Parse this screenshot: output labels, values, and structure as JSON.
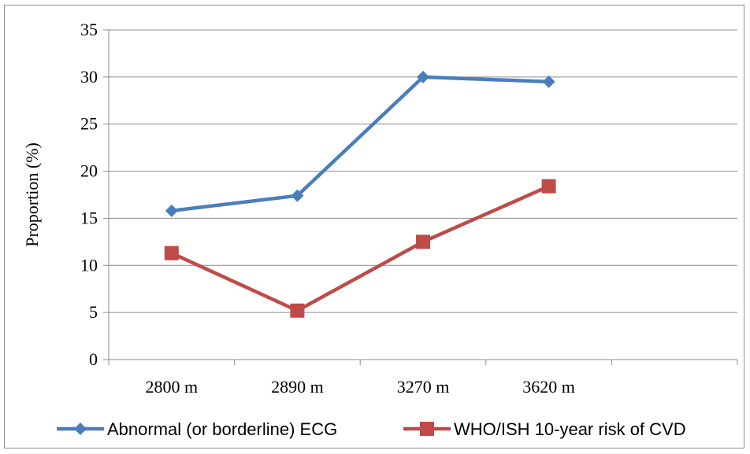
{
  "chart_data": {
    "type": "line",
    "categories": [
      "2800 m",
      "2890 m",
      "3270 m",
      "3620 m"
    ],
    "ylabel": "Proportion (%)",
    "xlabel": "",
    "ylim": [
      0,
      35
    ],
    "yticks": [
      "0",
      "5",
      "10",
      "15",
      "20",
      "25",
      "30",
      "35"
    ],
    "grid": true,
    "legend_position": "bottom",
    "series": [
      {
        "name": "Abnormal (or borderline) ECG",
        "color": "#4a7ebb",
        "marker": "diamond",
        "values": [
          15.8,
          17.4,
          30.0,
          29.5
        ]
      },
      {
        "name": "WHO/ISH 10-year risk of CVD",
        "color": "#be4b48",
        "marker": "square",
        "values": [
          11.3,
          5.2,
          12.5,
          18.4
        ]
      }
    ]
  }
}
